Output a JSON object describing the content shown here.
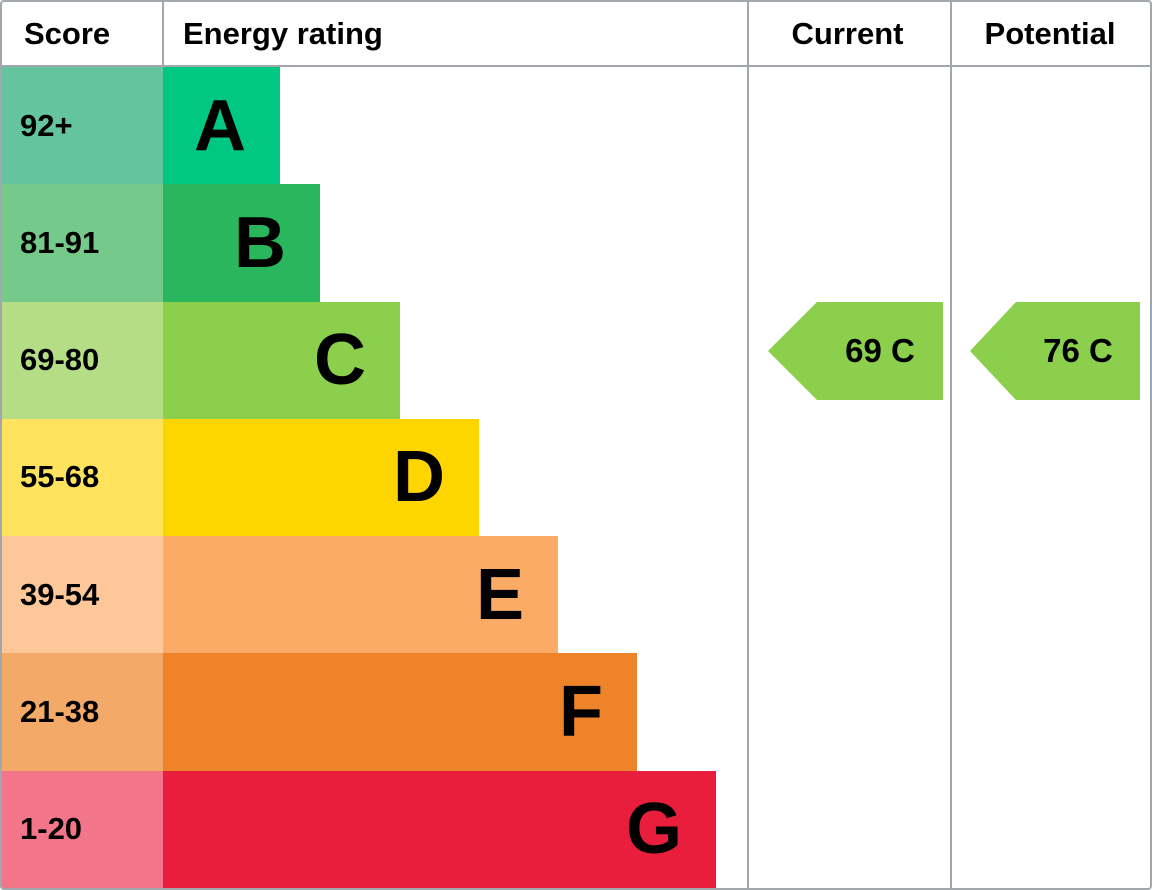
{
  "header": {
    "score": "Score",
    "energy_rating": "Energy rating",
    "current": "Current",
    "potential": "Potential"
  },
  "colors": {
    "border": "#a2a6ad",
    "current_arrow": "#8ccf4d",
    "potential_arrow": "#8ccf4d"
  },
  "bands": [
    {
      "letter": "A",
      "score": "92+",
      "bar_color": "#00c781",
      "score_bg": "#63c49e"
    },
    {
      "letter": "B",
      "score": "81-91",
      "bar_color": "#29b65c",
      "score_bg": "#74c98b"
    },
    {
      "letter": "C",
      "score": "69-80",
      "bar_color": "#8ccf4d",
      "score_bg": "#b4dd86"
    },
    {
      "letter": "D",
      "score": "55-68",
      "bar_color": "#ffd500",
      "score_bg": "#ffe35e"
    },
    {
      "letter": "E",
      "score": "39-54",
      "bar_color": "#fcab67",
      "score_bg": "#fdc79a"
    },
    {
      "letter": "F",
      "score": "21-38",
      "bar_color": "#ee8329",
      "score_bg": "#f3aa69"
    },
    {
      "letter": "G",
      "score": "1-20",
      "bar_color": "#e91d3c",
      "score_bg": "#f3758a"
    }
  ],
  "current": {
    "label": "69 C"
  },
  "potential": {
    "label": "76 C"
  },
  "chart_data": {
    "type": "bar",
    "title": "Energy rating (EPC band chart)",
    "columns": [
      "Score",
      "Energy rating",
      "Current",
      "Potential"
    ],
    "categories": [
      "A",
      "B",
      "C",
      "D",
      "E",
      "F",
      "G"
    ],
    "score_ranges": [
      "92+",
      "81-91",
      "69-80",
      "55-68",
      "39-54",
      "21-38",
      "1-20"
    ],
    "bar_colors": [
      "#00c781",
      "#29b65c",
      "#8ccf4d",
      "#ffd500",
      "#fcab67",
      "#ee8329",
      "#e91d3c"
    ],
    "current": {
      "value": 69,
      "band": "C"
    },
    "potential": {
      "value": 76,
      "band": "C"
    },
    "grid": false,
    "legend_position": "none"
  }
}
